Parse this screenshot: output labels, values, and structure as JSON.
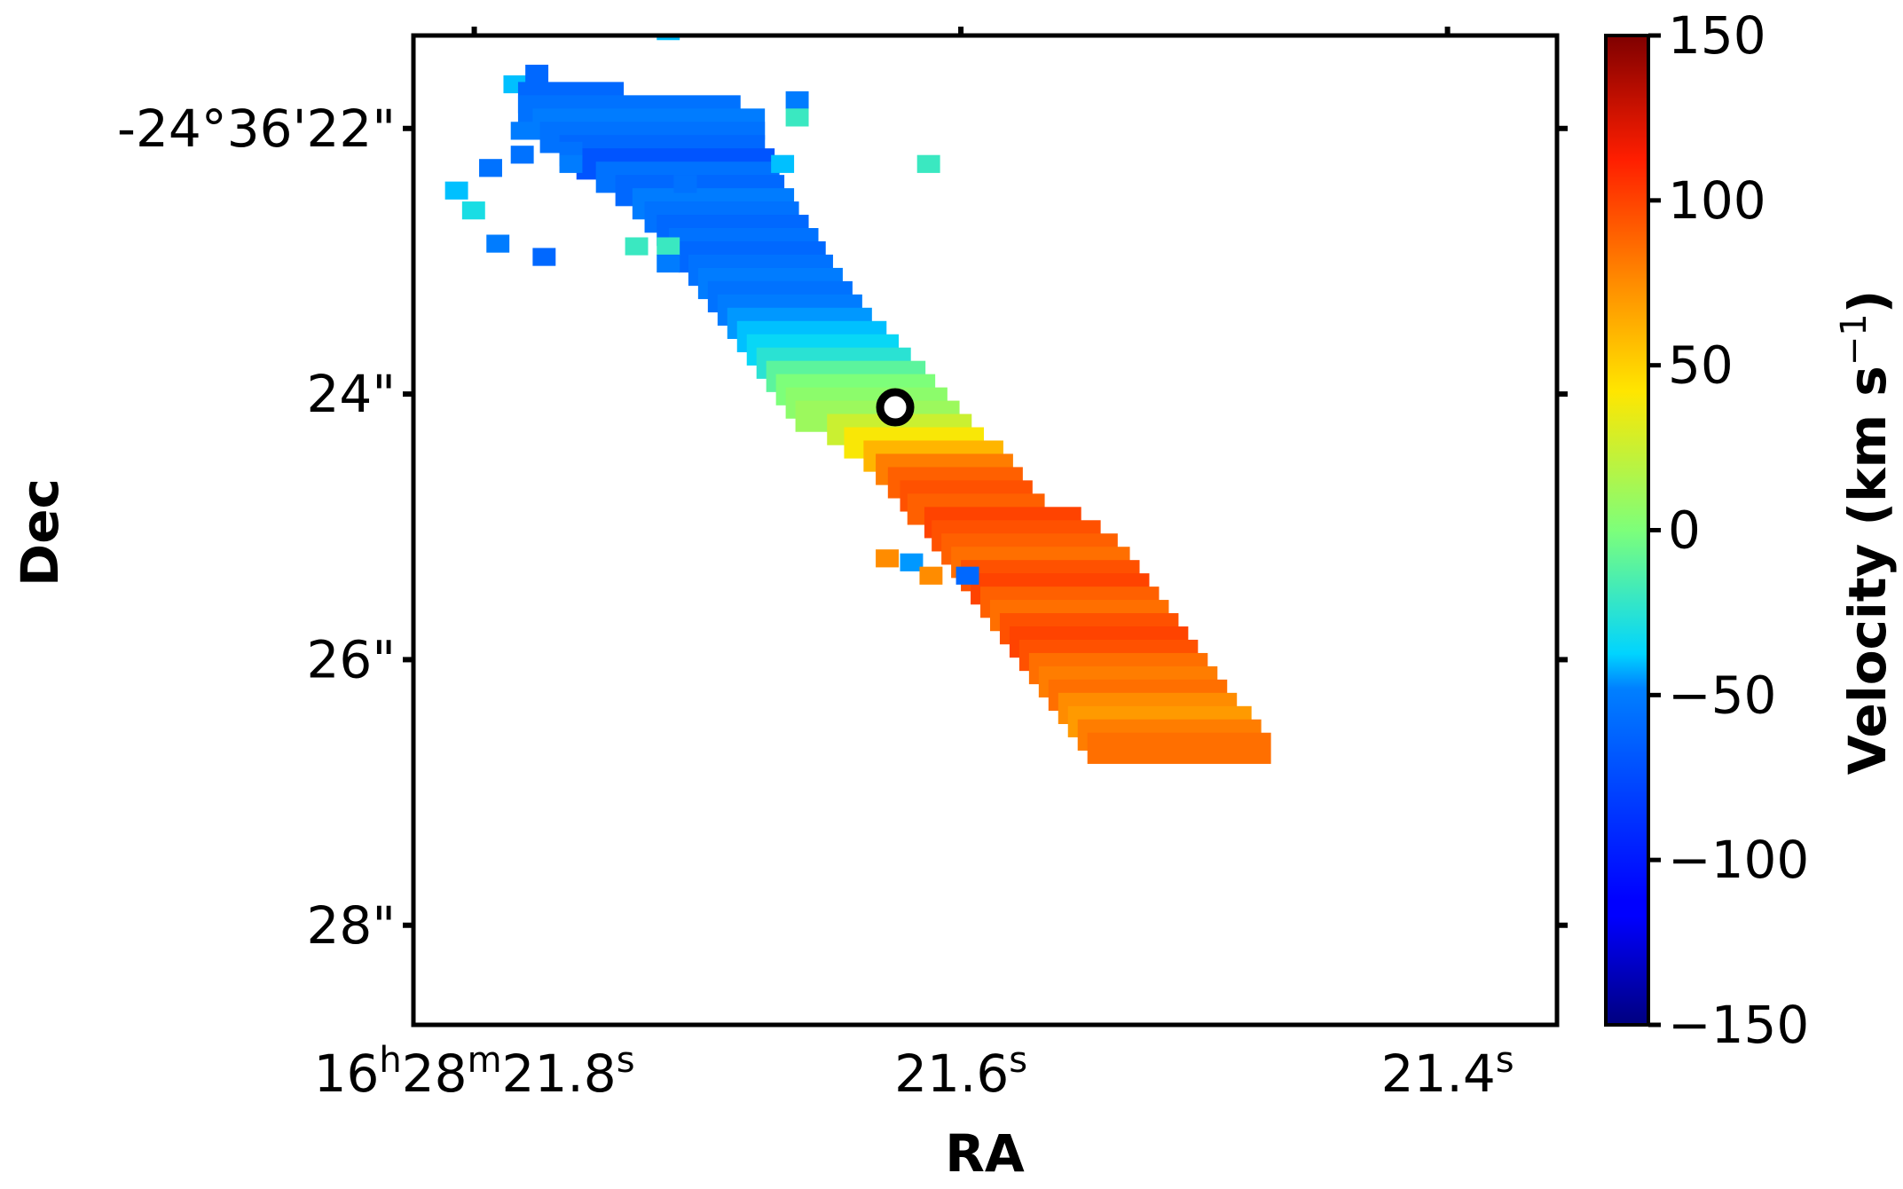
{
  "chart_data": {
    "type": "heatmap",
    "title": "",
    "xlabel": "RA",
    "ylabel": "Dec",
    "colorbar_label": "Velocity (km s",
    "colorbar_label_sup": "−1",
    "colorbar_label_close": ")",
    "colormap": "jet",
    "colorbar_range": [
      -150,
      150
    ],
    "xlim": [
      21.825,
      21.355
    ],
    "ylim": [
      21.3,
      28.75
    ],
    "grid": false,
    "xticks": [
      {
        "value": 21.8,
        "parts": [
          [
            "16",
            "n"
          ],
          [
            "h",
            "s"
          ],
          [
            "28",
            "n"
          ],
          [
            "m",
            "s"
          ],
          [
            "21.8",
            "n"
          ],
          [
            "s",
            "s"
          ]
        ]
      },
      {
        "value": 21.6,
        "parts": [
          [
            "21.6",
            "n"
          ],
          [
            "s",
            "s"
          ]
        ]
      },
      {
        "value": 21.4,
        "parts": [
          [
            "21.4",
            "n"
          ],
          [
            "s",
            "s"
          ]
        ]
      }
    ],
    "yticks": [
      {
        "value": 22,
        "label": "-24°36'22\""
      },
      {
        "value": 24,
        "label": "24\""
      },
      {
        "value": 26,
        "label": "26\""
      },
      {
        "value": 28,
        "label": "28\""
      }
    ],
    "colorbar_ticks": [
      150,
      100,
      50,
      0,
      -50,
      -100,
      -150
    ],
    "colorbar_tick_labels": [
      "150",
      "100",
      "50",
      "0",
      "−50",
      "−100",
      "−150"
    ],
    "pixel_size": {
      "ra_s": 0.00945,
      "dec_arcsec": 0.135
    },
    "marker": {
      "ra_s": 21.627,
      "dec_arcsec": 24.1,
      "label": "circle"
    },
    "points": [
      [
        21.725,
        21.2,
        -40
      ],
      [
        21.672,
        21.72,
        -50
      ],
      [
        21.672,
        21.85,
        -20
      ],
      [
        21.678,
        22.2,
        -40
      ],
      [
        21.618,
        22.2,
        -20
      ],
      [
        21.725,
        22.82,
        -20
      ],
      [
        21.725,
        22.95,
        -50
      ],
      [
        21.738,
        22.82,
        -20
      ],
      [
        21.779,
        21.52,
        -60
      ],
      [
        21.785,
        21.95,
        -50
      ],
      [
        21.785,
        22.13,
        -55
      ],
      [
        21.798,
        22.23,
        -55
      ],
      [
        21.718,
        22.35,
        -55
      ],
      [
        21.765,
        22.1,
        -55
      ],
      [
        21.765,
        22.2,
        -50
      ],
      [
        21.812,
        22.4,
        -40
      ],
      [
        21.805,
        22.55,
        -30
      ],
      [
        21.776,
        22.9,
        -60
      ],
      [
        21.795,
        22.8,
        -50
      ],
      [
        21.635,
        25.17,
        75
      ],
      [
        21.625,
        25.2,
        -45
      ],
      [
        21.617,
        25.3,
        75
      ],
      [
        21.602,
        25.3,
        -60
      ]
    ],
    "blocks": [
      [
        21.788,
        21.6,
        21.788,
        21.6,
        -40
      ],
      [
        21.782,
        21.65,
        21.748,
        21.75,
        -60
      ],
      [
        21.782,
        21.75,
        21.7,
        21.85,
        -55
      ],
      [
        21.776,
        21.85,
        21.69,
        21.95,
        -50
      ],
      [
        21.773,
        21.95,
        21.69,
        22.05,
        -55
      ],
      [
        21.765,
        22.05,
        21.69,
        22.15,
        -60
      ],
      [
        21.758,
        22.15,
        21.686,
        22.25,
        -70
      ],
      [
        21.75,
        22.25,
        21.684,
        22.35,
        -55
      ],
      [
        21.742,
        22.35,
        21.682,
        22.45,
        -60
      ],
      [
        21.735,
        22.45,
        21.678,
        22.55,
        -50
      ],
      [
        21.73,
        22.55,
        21.676,
        22.65,
        -55
      ],
      [
        21.725,
        22.65,
        21.672,
        22.75,
        -60
      ],
      [
        21.72,
        22.75,
        21.668,
        22.85,
        -55
      ],
      [
        21.716,
        22.85,
        21.665,
        22.95,
        -60
      ],
      [
        21.712,
        22.95,
        21.662,
        23.05,
        -55
      ],
      [
        21.708,
        23.05,
        21.658,
        23.15,
        -50
      ],
      [
        21.704,
        23.15,
        21.654,
        23.25,
        -55
      ],
      [
        21.7,
        23.25,
        21.65,
        23.35,
        -50
      ],
      [
        21.696,
        23.35,
        21.646,
        23.45,
        -45
      ],
      [
        21.692,
        23.45,
        21.64,
        23.55,
        -40
      ],
      [
        21.688,
        23.55,
        21.635,
        23.65,
        -35
      ],
      [
        21.684,
        23.65,
        21.63,
        23.75,
        -25
      ],
      [
        21.68,
        23.75,
        21.624,
        23.85,
        -10
      ],
      [
        21.676,
        23.85,
        21.62,
        23.95,
        0
      ],
      [
        21.672,
        23.95,
        21.615,
        24.05,
        5
      ],
      [
        21.668,
        24.05,
        21.61,
        24.15,
        10
      ],
      [
        21.655,
        24.15,
        21.605,
        24.25,
        25
      ],
      [
        21.648,
        24.25,
        21.6,
        24.35,
        40
      ],
      [
        21.64,
        24.35,
        21.592,
        24.45,
        60
      ],
      [
        21.635,
        24.45,
        21.588,
        24.55,
        80
      ],
      [
        21.63,
        24.55,
        21.584,
        24.65,
        90
      ],
      [
        21.625,
        24.65,
        21.58,
        24.75,
        95
      ],
      [
        21.622,
        24.75,
        21.575,
        24.85,
        90
      ],
      [
        21.615,
        24.85,
        21.56,
        24.95,
        100
      ],
      [
        21.612,
        24.95,
        21.552,
        25.05,
        95
      ],
      [
        21.608,
        25.05,
        21.545,
        25.15,
        90
      ],
      [
        21.604,
        25.15,
        21.54,
        25.25,
        85
      ],
      [
        21.6,
        25.25,
        21.536,
        25.35,
        95
      ],
      [
        21.596,
        25.35,
        21.532,
        25.45,
        100
      ],
      [
        21.592,
        25.45,
        21.528,
        25.55,
        90
      ],
      [
        21.588,
        25.55,
        21.524,
        25.65,
        85
      ],
      [
        21.584,
        25.65,
        21.52,
        25.75,
        95
      ],
      [
        21.58,
        25.75,
        21.516,
        25.85,
        100
      ],
      [
        21.576,
        25.85,
        21.512,
        25.95,
        95
      ],
      [
        21.572,
        25.95,
        21.508,
        26.05,
        85
      ],
      [
        21.568,
        26.05,
        21.504,
        26.15,
        80
      ],
      [
        21.564,
        26.15,
        21.5,
        26.25,
        85
      ],
      [
        21.56,
        26.25,
        21.496,
        26.35,
        75
      ],
      [
        21.556,
        26.35,
        21.49,
        26.45,
        70
      ],
      [
        21.552,
        26.45,
        21.486,
        26.55,
        80
      ],
      [
        21.548,
        26.55,
        21.482,
        26.65,
        85
      ]
    ]
  }
}
